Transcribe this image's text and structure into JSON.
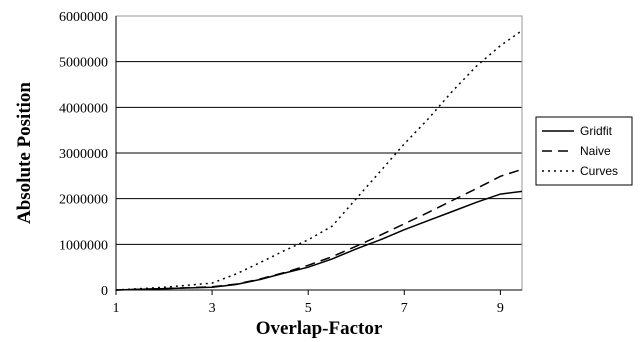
{
  "chart_data": {
    "type": "line",
    "title": "",
    "xlabel": "Overlap-Factor",
    "ylabel": "Absolute Position",
    "xlim": [
      1,
      9.45
    ],
    "ylim": [
      0,
      6000000
    ],
    "x_ticks": [
      "1",
      "3",
      "5",
      "7",
      "9"
    ],
    "y_ticks": [
      "0",
      "1000000",
      "2000000",
      "3000000",
      "4000000",
      "5000000",
      "6000000"
    ],
    "grid": "horizontal",
    "legend_position": "right",
    "series": [
      {
        "name": "Gridfit",
        "style": "solid",
        "x": [
          1,
          2,
          3,
          3.5,
          4,
          4.5,
          5,
          5.5,
          6,
          6.5,
          7,
          7.5,
          8,
          8.5,
          9,
          9.45
        ],
        "y": [
          0,
          30000,
          60000,
          120000,
          230000,
          370000,
          500000,
          680000,
          900000,
          1100000,
          1320000,
          1520000,
          1720000,
          1920000,
          2100000,
          2160000
        ]
      },
      {
        "name": "Naive",
        "style": "dashed",
        "x": [
          1,
          2,
          3,
          3.5,
          4,
          4.5,
          5,
          5.5,
          6,
          6.5,
          7,
          7.5,
          8,
          8.5,
          9,
          9.45
        ],
        "y": [
          0,
          30000,
          70000,
          130000,
          240000,
          380000,
          540000,
          730000,
          960000,
          1200000,
          1450000,
          1700000,
          1960000,
          2220000,
          2490000,
          2640000
        ]
      },
      {
        "name": "Curves",
        "style": "dotted",
        "x": [
          1,
          2,
          3,
          3.5,
          4,
          4.5,
          5,
          5.5,
          6,
          6.5,
          7,
          7.5,
          8,
          8.5,
          9,
          9.45
        ],
        "y": [
          0,
          60000,
          150000,
          350000,
          600000,
          860000,
          1100000,
          1400000,
          2000000,
          2600000,
          3200000,
          3750000,
          4350000,
          4900000,
          5350000,
          5680000
        ]
      }
    ]
  }
}
